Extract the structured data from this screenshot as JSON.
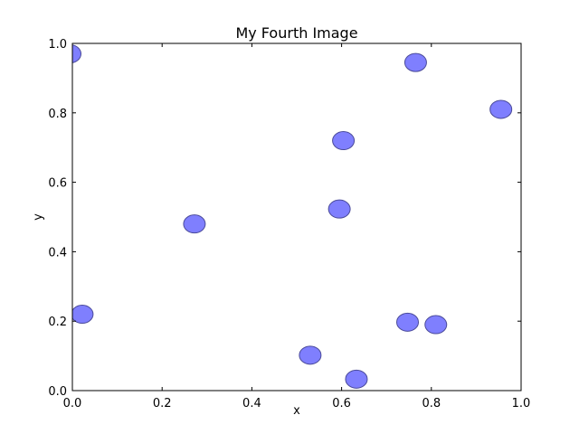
{
  "chart_data": {
    "type": "scatter",
    "title": "My Fourth Image",
    "xlabel": "x",
    "ylabel": "y",
    "xlim": [
      0.0,
      1.0
    ],
    "ylim": [
      0.0,
      1.0
    ],
    "x_ticks": [
      "0.0",
      "0.2",
      "0.4",
      "0.6",
      "0.8",
      "1.0"
    ],
    "y_ticks": [
      "0.0",
      "0.2",
      "0.4",
      "0.6",
      "0.8",
      "1.0"
    ],
    "grid": false,
    "marker_color": "#7f7ffe",
    "marker_edge_color": "#4a4a99",
    "points": [
      {
        "x": -0.005,
        "y": 0.97
      },
      {
        "x": 0.022,
        "y": 0.22
      },
      {
        "x": 0.272,
        "y": 0.48
      },
      {
        "x": 0.53,
        "y": 0.102
      },
      {
        "x": 0.595,
        "y": 0.523
      },
      {
        "x": 0.604,
        "y": 0.72
      },
      {
        "x": 0.633,
        "y": 0.033
      },
      {
        "x": 0.747,
        "y": 0.197
      },
      {
        "x": 0.765,
        "y": 0.945
      },
      {
        "x": 0.81,
        "y": 0.19
      },
      {
        "x": 0.955,
        "y": 0.81
      }
    ]
  }
}
